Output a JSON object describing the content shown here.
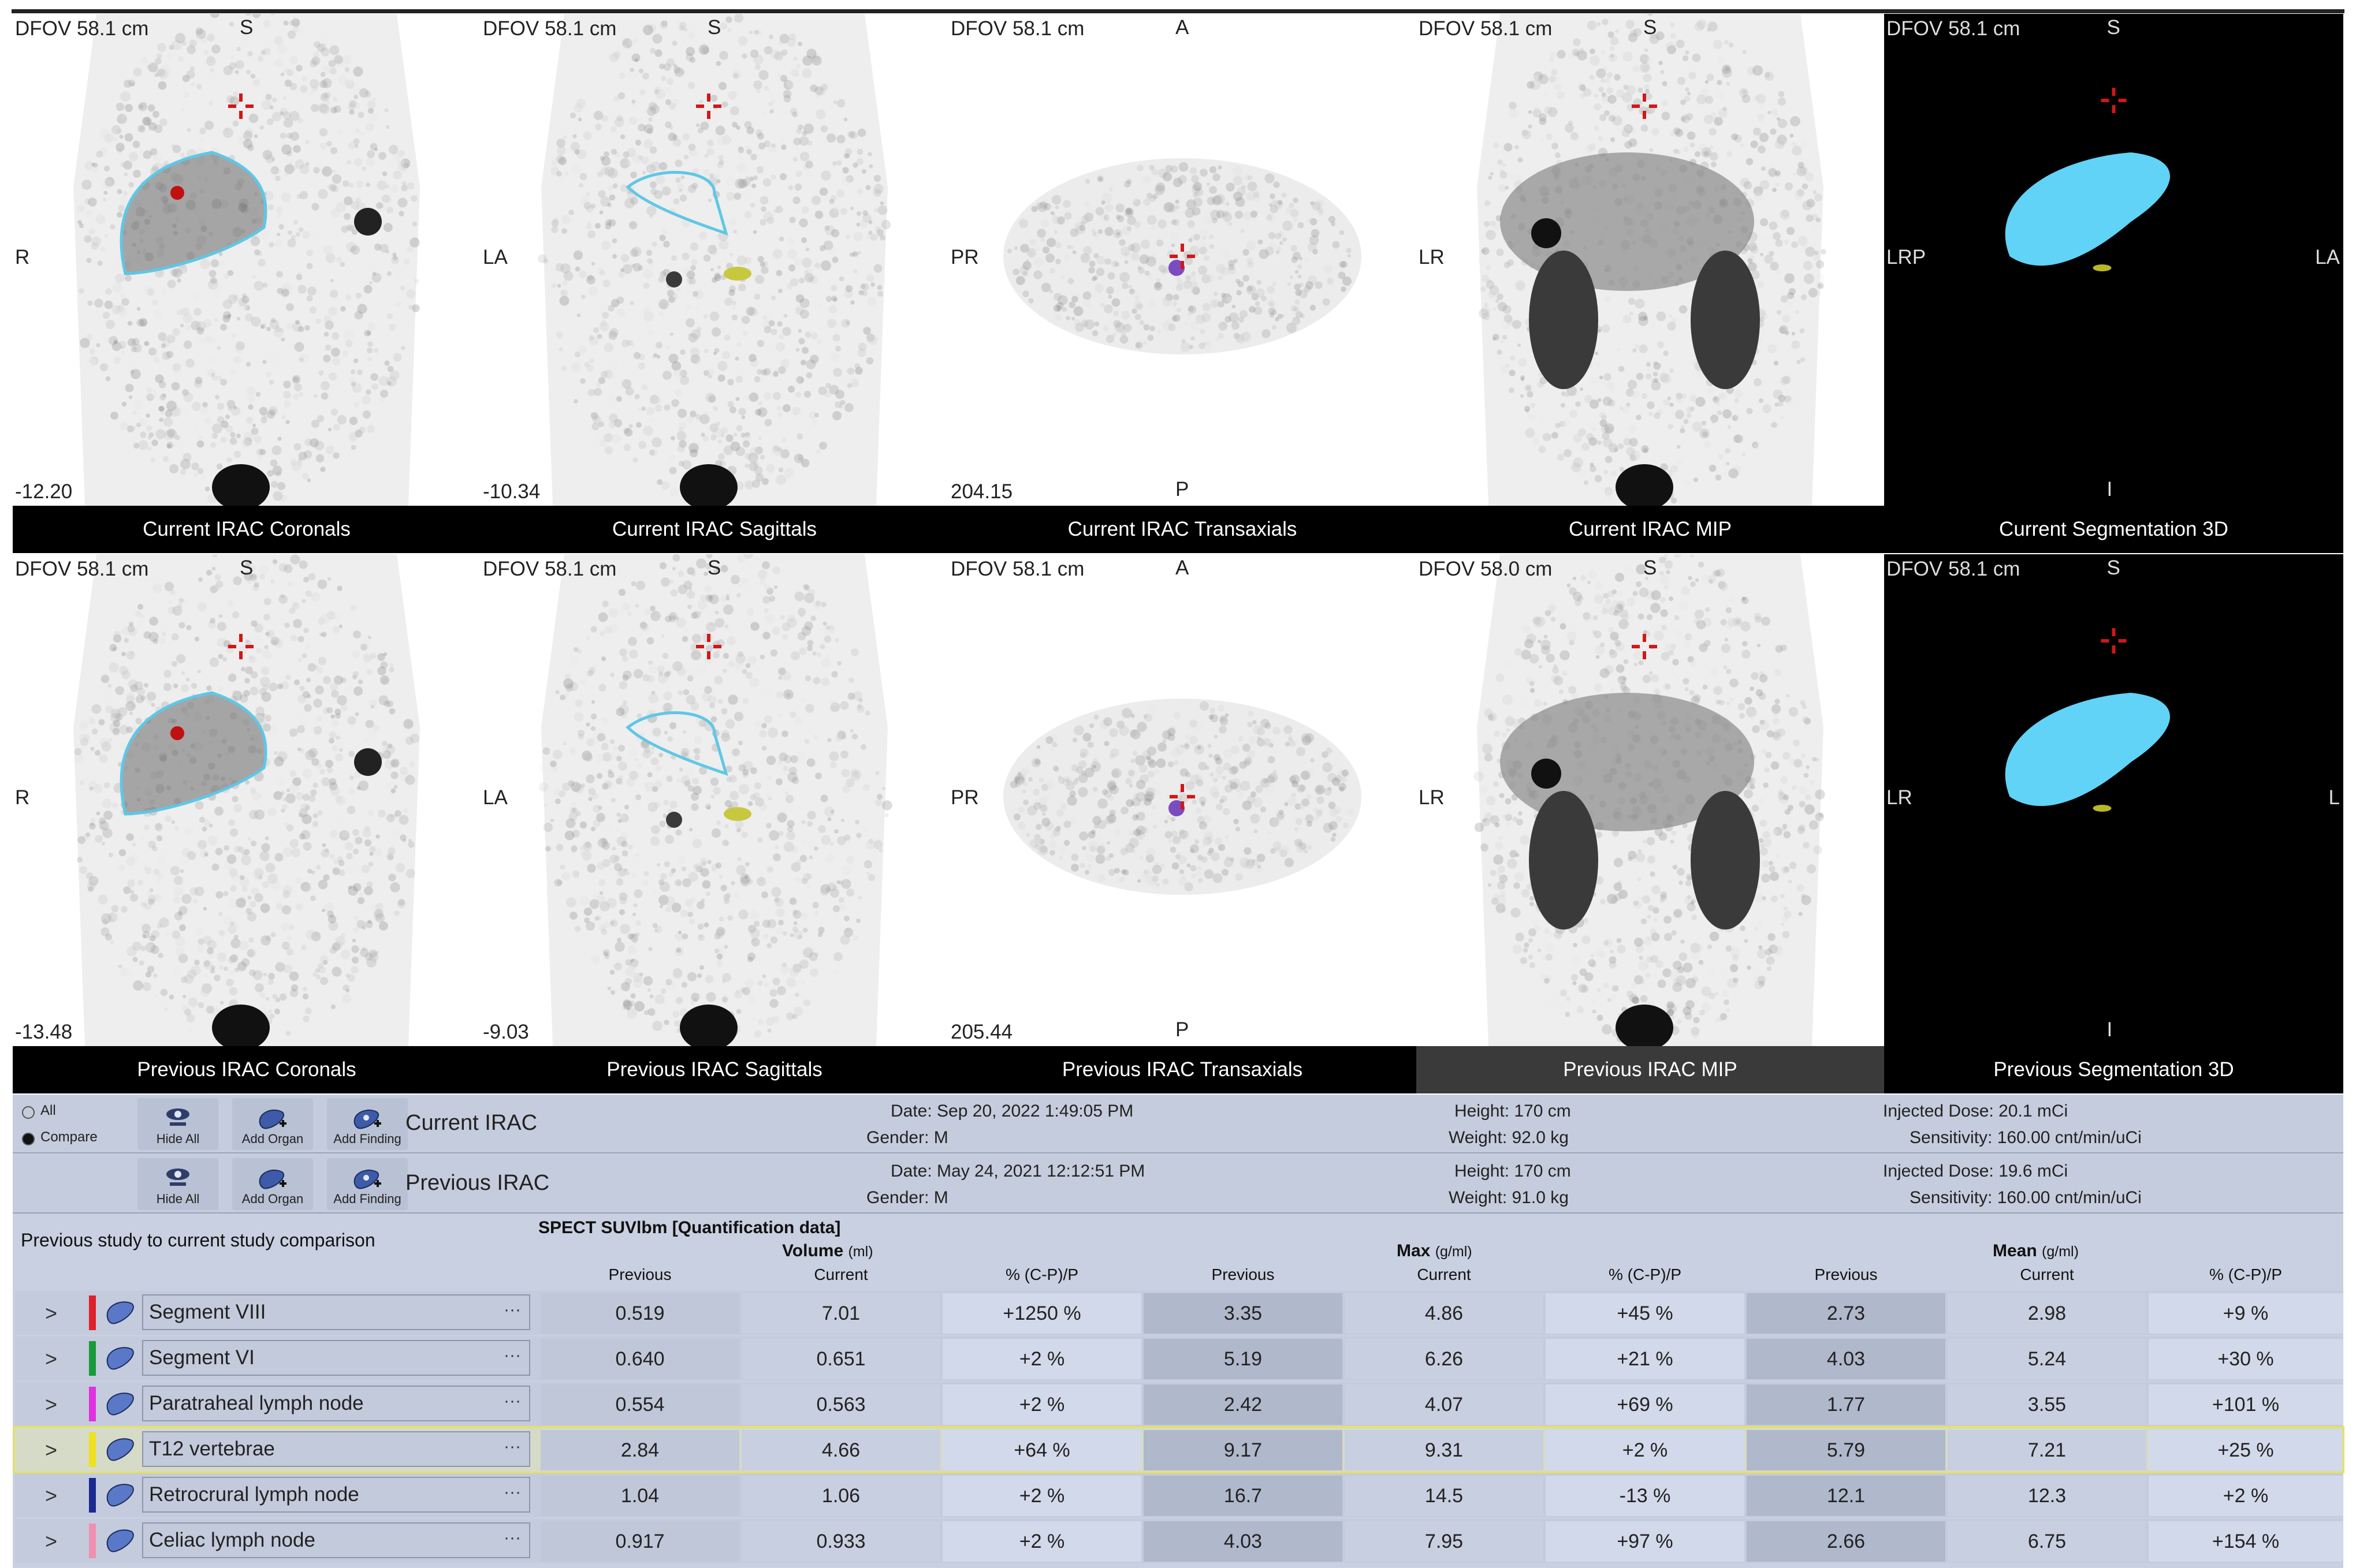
{
  "viewports": {
    "top": [
      {
        "dfov": "DFOV 58.1 cm",
        "top": "S",
        "left": "R",
        "right": "",
        "bottom": "",
        "slice": "-12.20",
        "caption": "Current IRAC Coronals"
      },
      {
        "dfov": "DFOV 58.1 cm",
        "top": "S",
        "left": "LA",
        "right": "",
        "bottom": "",
        "slice": "-10.34",
        "caption": "Current IRAC Sagittals"
      },
      {
        "dfov": "DFOV 58.1 cm",
        "top": "A",
        "left": "PR",
        "right": "",
        "bottom": "P",
        "slice": "204.15",
        "caption": "Current IRAC Transaxials"
      },
      {
        "dfov": "DFOV 58.1 cm",
        "top": "S",
        "left": "LR",
        "right": "",
        "bottom": "",
        "slice": "",
        "caption": "Current IRAC MIP"
      },
      {
        "dfov": "DFOV 58.1 cm",
        "top": "S",
        "left": "LRP",
        "right": "LA",
        "bottom": "I",
        "slice": "",
        "caption": "Current Segmentation 3D"
      }
    ],
    "bottom": [
      {
        "dfov": "DFOV 58.1 cm",
        "top": "S",
        "left": "R",
        "right": "",
        "bottom": "",
        "slice": "-13.48",
        "caption": "Previous IRAC Coronals"
      },
      {
        "dfov": "DFOV 58.1 cm",
        "top": "S",
        "left": "LA",
        "right": "",
        "bottom": "",
        "slice": "-9.03",
        "caption": "Previous IRAC Sagittals"
      },
      {
        "dfov": "DFOV 58.1 cm",
        "top": "A",
        "left": "PR",
        "right": "",
        "bottom": "P",
        "slice": "205.44",
        "caption": "Previous IRAC Transaxials"
      },
      {
        "dfov": "DFOV 58.0 cm",
        "top": "S",
        "left": "LR",
        "right": "",
        "bottom": "",
        "slice": "",
        "caption": "Previous IRAC MIP"
      },
      {
        "dfov": "DFOV 58.1 cm",
        "top": "S",
        "left": "LR",
        "right": "L",
        "bottom": "I",
        "slice": "",
        "caption": "Previous Segmentation 3D"
      }
    ]
  },
  "mode": {
    "all": "All",
    "compare": "Compare"
  },
  "buttons": {
    "hide_all": "Hide All",
    "add_organ": "Add Organ",
    "add_finding": "Add Finding"
  },
  "current": {
    "name": "Current IRAC",
    "date": "Date: Sep 20, 2022 1:49:05 PM",
    "gender": "Gender: M",
    "height": "Height: 170 cm",
    "weight": "Weight: 92.0 kg",
    "dose": "Injected Dose: 20.1 mCi",
    "sens": "Sensitivity: 160.00 cnt/min/uCi"
  },
  "previous": {
    "name": "Previous IRAC",
    "date": "Date: May 24, 2021 12:12:51 PM",
    "gender": "Gender: M",
    "height": "Height: 170 cm",
    "weight": "Weight: 91.0 kg",
    "dose": "Injected Dose: 19.6 mCi",
    "sens": "Sensitivity: 160.00 cnt/min/uCi"
  },
  "table": {
    "title": "Previous study to current study comparison",
    "quant": "SPECT SUVlbm [Quantification data]",
    "groups": {
      "volume": "Volume",
      "volume_unit": "(ml)",
      "max": "Max",
      "max_unit": "(g/ml)",
      "mean": "Mean",
      "mean_unit": "(g/ml)"
    },
    "cols": {
      "prev": "Previous",
      "cur": "Current",
      "pct": "% (C-P)/P"
    },
    "rows": [
      {
        "name": "Segment VIII",
        "color": "#e0202a",
        "v": [
          "0.519",
          "7.01",
          "+1250 %"
        ],
        "x": [
          "3.35",
          "4.86",
          "+45 %"
        ],
        "m": [
          "2.73",
          "2.98",
          "+9 %"
        ]
      },
      {
        "name": "Segment VI",
        "color": "#1a9a3a",
        "v": [
          "0.640",
          "0.651",
          "+2 %"
        ],
        "x": [
          "5.19",
          "6.26",
          "+21 %"
        ],
        "m": [
          "4.03",
          "5.24",
          "+30 %"
        ]
      },
      {
        "name": "Paratraheal lymph node",
        "color": "#e030e0",
        "v": [
          "0.554",
          "0.563",
          "+2 %"
        ],
        "x": [
          "2.42",
          "4.07",
          "+69 %"
        ],
        "m": [
          "1.77",
          "3.55",
          "+101 %"
        ]
      },
      {
        "name": "T12 vertebrae",
        "color": "#f0e020",
        "v": [
          "2.84",
          "4.66",
          "+64 %"
        ],
        "x": [
          "9.17",
          "9.31",
          "+2 %"
        ],
        "m": [
          "5.79",
          "7.21",
          "+25 %"
        ]
      },
      {
        "name": "Retrocrural lymph node",
        "color": "#1c2a90",
        "v": [
          "1.04",
          "1.06",
          "+2 %"
        ],
        "x": [
          "16.7",
          "14.5",
          "-13 %"
        ],
        "m": [
          "12.1",
          "12.3",
          "+2 %"
        ]
      },
      {
        "name": "Celiac lymph node",
        "color": "#f090b0",
        "v": [
          "0.917",
          "0.933",
          "+2 %"
        ],
        "x": [
          "4.03",
          "7.95",
          "+97 %"
        ],
        "m": [
          "2.66",
          "6.75",
          "+154 %"
        ]
      }
    ],
    "chevron": ">",
    "dots": "···"
  }
}
